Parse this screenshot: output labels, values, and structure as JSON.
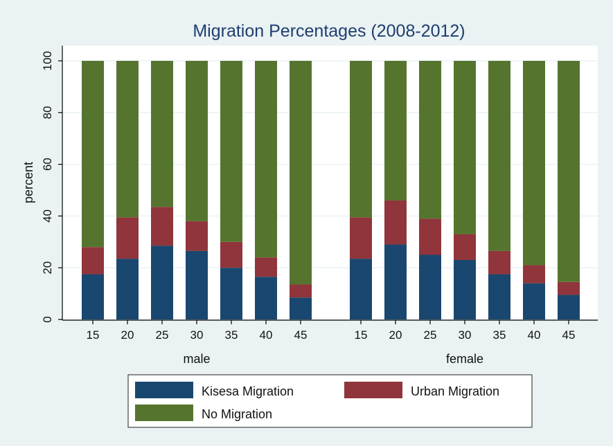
{
  "colors": {
    "background": "#eaf2f3",
    "plot_background": "#ffffff",
    "gridline": "#eaf2f3",
    "title": "#1f3e6f"
  },
  "chart_data": {
    "type": "bar",
    "stacked": true,
    "title": "Migration Percentages (2008-2012)",
    "xlabel": "",
    "ylabel": "percent",
    "ylim": [
      0,
      100
    ],
    "yticks": [
      0,
      20,
      40,
      60,
      80,
      100
    ],
    "grid": true,
    "legend_position": "bottom",
    "groups": [
      "male",
      "female"
    ],
    "categories": [
      "15",
      "20",
      "25",
      "30",
      "35",
      "40",
      "45"
    ],
    "series": [
      {
        "name": "Kisesa Migration",
        "color": "#1a476f",
        "values": {
          "male": [
            17.5,
            23.5,
            28.5,
            26.5,
            20,
            16.5,
            8.5
          ],
          "female": [
            23.5,
            29,
            25,
            23,
            17.5,
            14,
            9.5
          ]
        }
      },
      {
        "name": "Urban Migration",
        "color": "#90353b",
        "values": {
          "male": [
            10.5,
            16,
            15,
            11.5,
            10,
            7.5,
            5
          ],
          "female": [
            16,
            17,
            14,
            10,
            9,
            7,
            5
          ]
        }
      },
      {
        "name": "No Migration",
        "color": "#55752f",
        "values": {
          "male": [
            72,
            60.5,
            56.5,
            62,
            70,
            76,
            86.5
          ],
          "female": [
            60.5,
            54,
            61,
            67,
            73.5,
            79,
            85.5
          ]
        }
      }
    ]
  }
}
